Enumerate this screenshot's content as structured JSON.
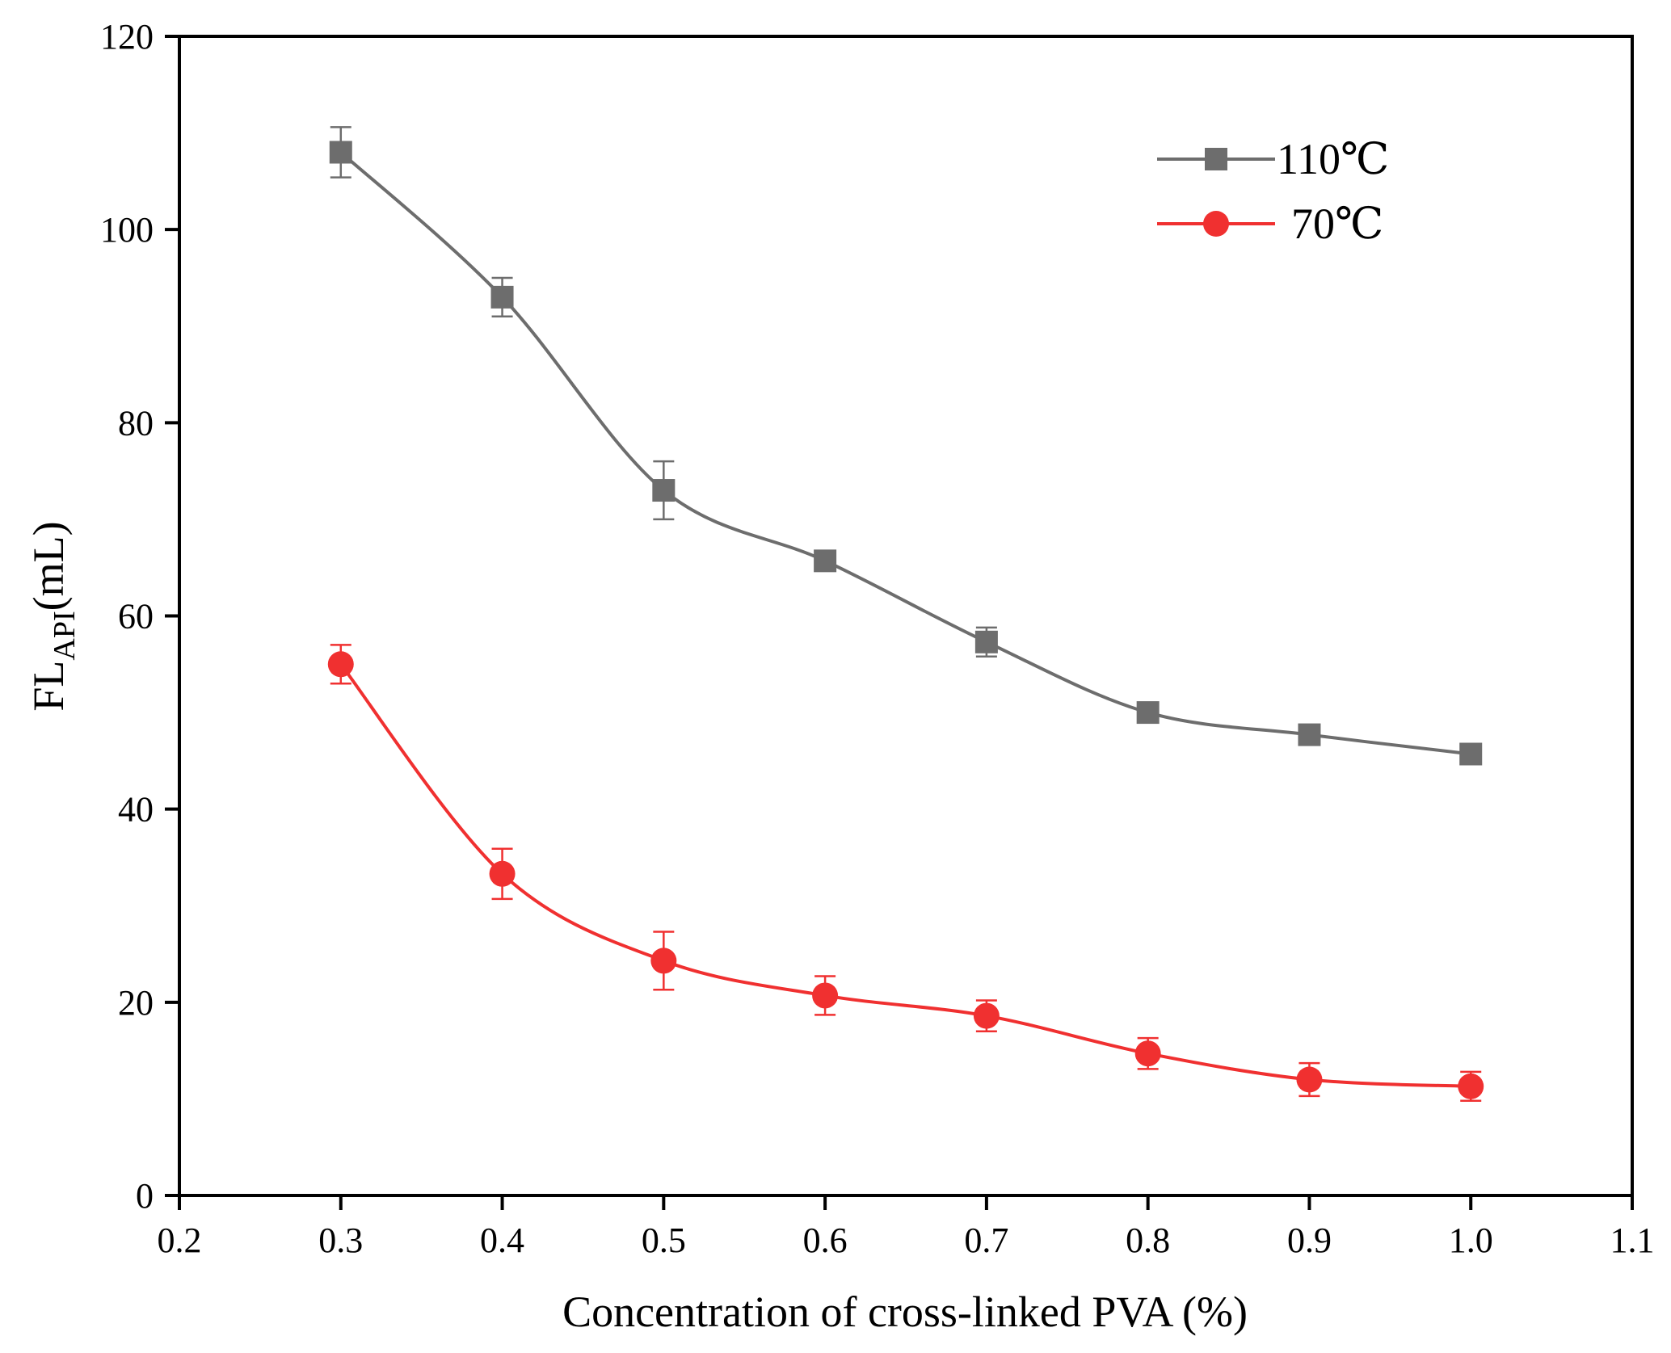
{
  "chart_data": {
    "type": "line",
    "title": "",
    "xlabel": "Concentration of cross-linked PVA (%)",
    "ylabel": {
      "main": "FL",
      "sub": "API",
      "unit": "(mL)"
    },
    "xlim": [
      0.2,
      1.1
    ],
    "ylim": [
      0,
      120
    ],
    "xticks": [
      "0.2",
      "0.3",
      "0.4",
      "0.5",
      "0.6",
      "0.7",
      "0.8",
      "0.9",
      "1.0",
      "1.1"
    ],
    "yticks": [
      "0",
      "20",
      "40",
      "60",
      "80",
      "100",
      "120"
    ],
    "grid": false,
    "legend_position": "top-right",
    "series": [
      {
        "name": "110℃",
        "color": "#6d6d6d",
        "marker": "square",
        "x": [
          0.3,
          0.4,
          0.5,
          0.6,
          0.7,
          0.8,
          0.9,
          1.0
        ],
        "values": [
          108,
          93,
          73,
          65.7,
          57.3,
          50,
          47.7,
          45.7
        ],
        "errors": [
          2.6,
          2.0,
          3.0,
          0.8,
          1.5,
          0.5,
          0.5,
          0.5
        ]
      },
      {
        "name": "70℃",
        "color": "#f03030",
        "marker": "circle",
        "x": [
          0.3,
          0.4,
          0.5,
          0.6,
          0.7,
          0.8,
          0.9,
          1.0
        ],
        "values": [
          55,
          33.3,
          24.3,
          20.7,
          18.6,
          14.7,
          12.0,
          11.3
        ],
        "errors": [
          2.0,
          2.6,
          3.0,
          2.0,
          1.6,
          1.6,
          1.7,
          1.5
        ]
      }
    ]
  }
}
